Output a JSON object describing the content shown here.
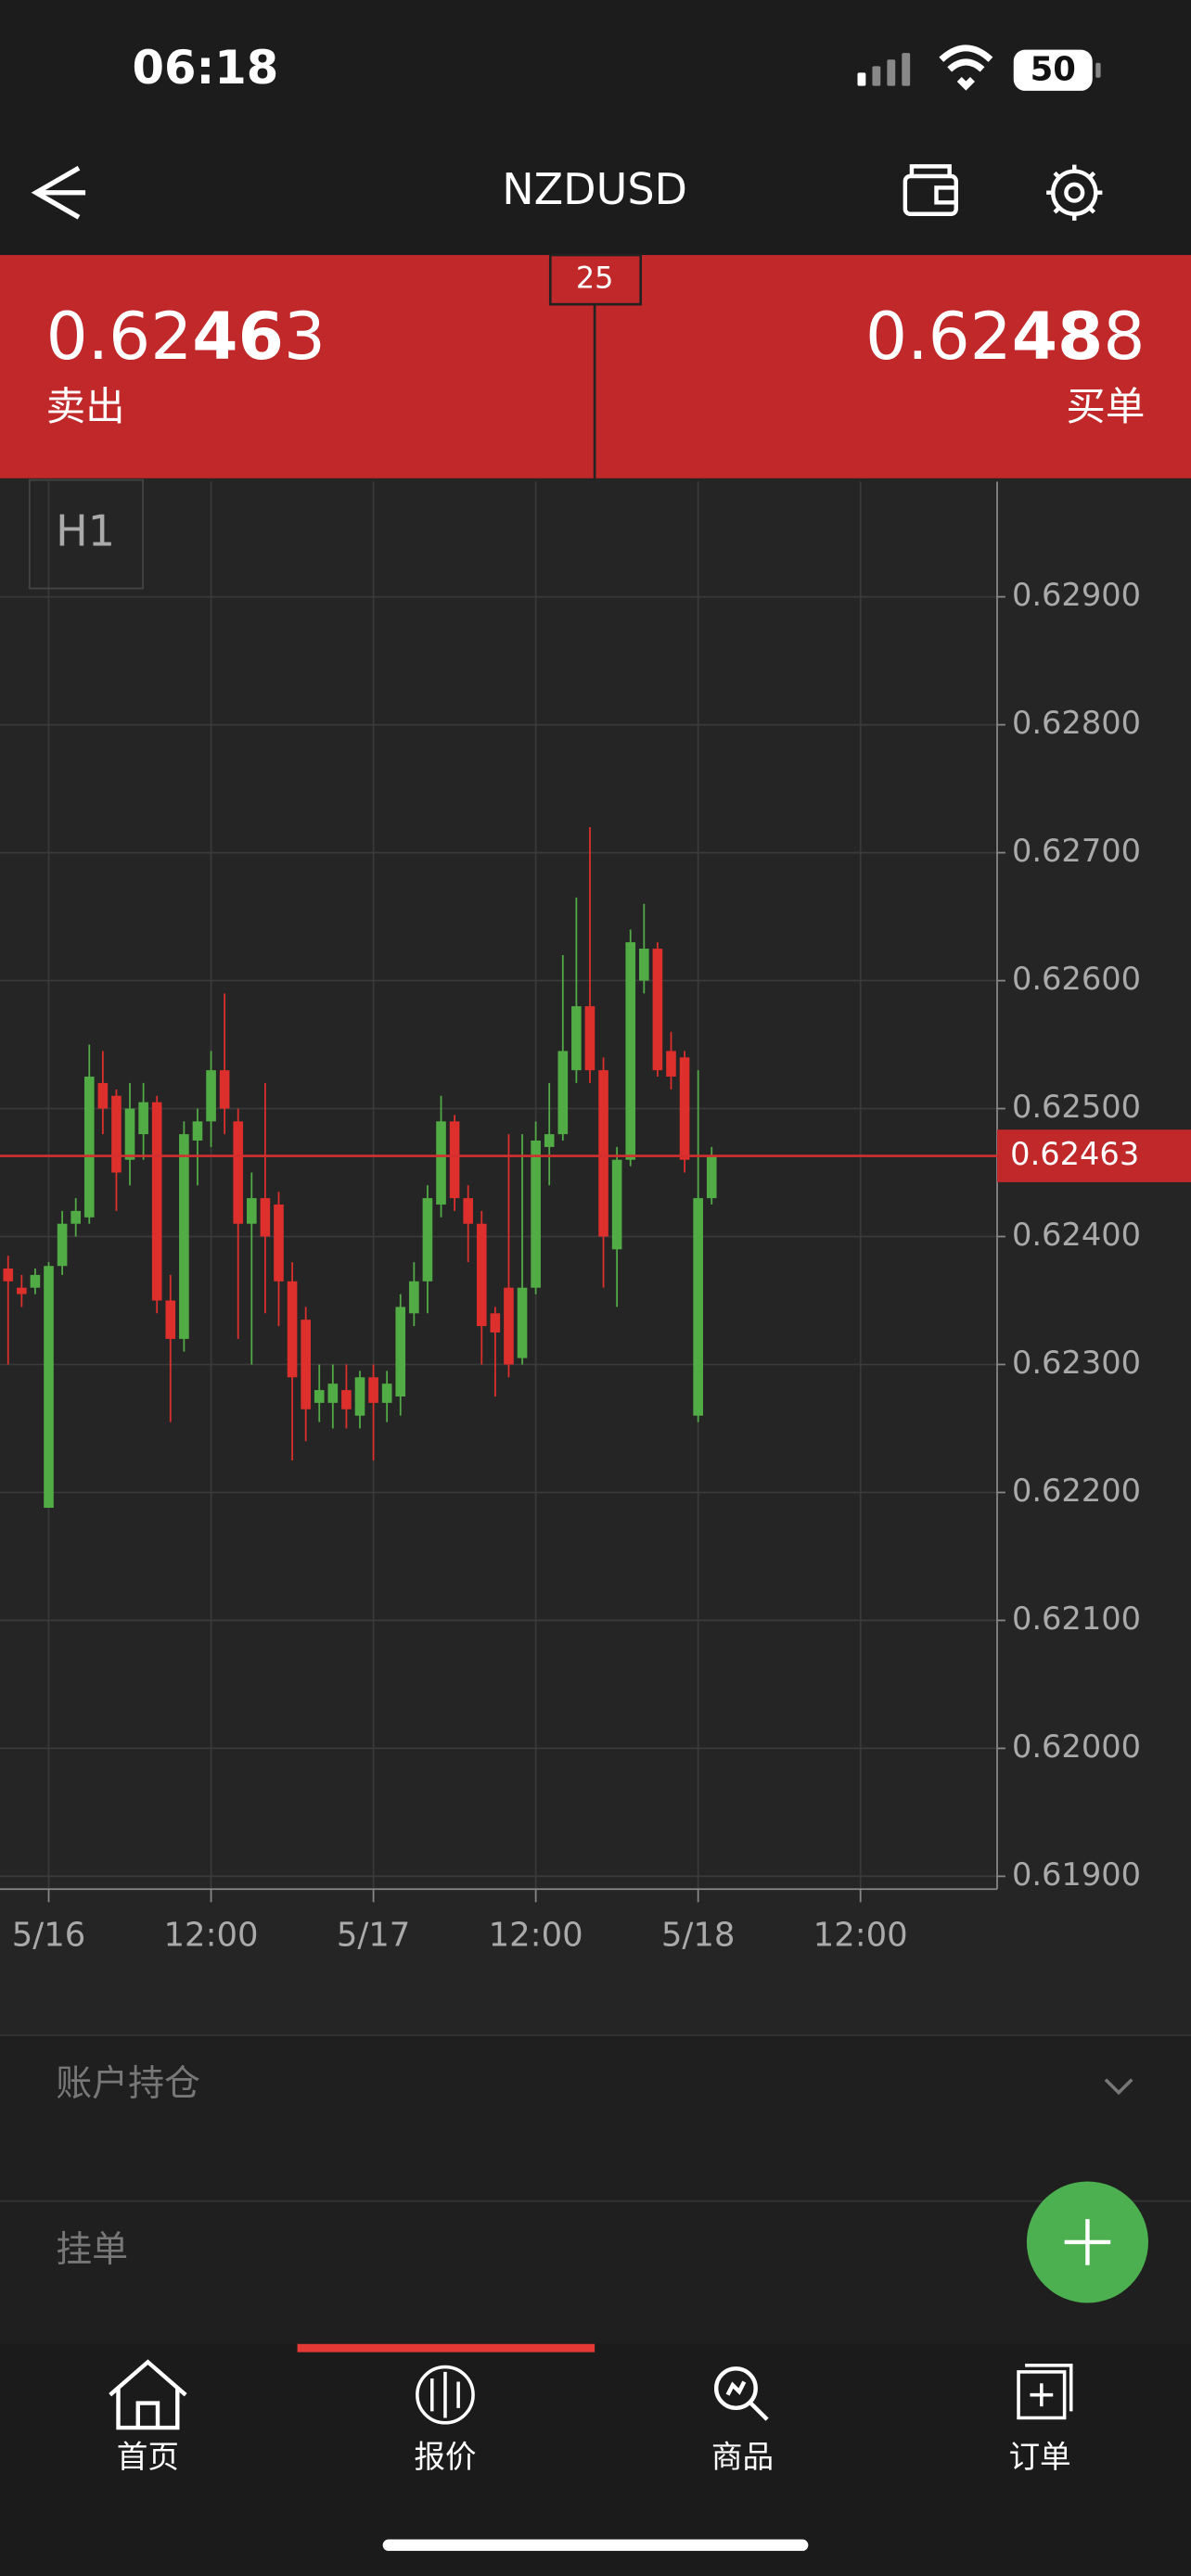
{
  "status_bar": {
    "time": "06:18",
    "battery": "50"
  },
  "header": {
    "title": "NZDUSD"
  },
  "quote": {
    "spread": "25",
    "sell": {
      "price_start": "0.62",
      "price_big": "46",
      "price_end": "3",
      "label": "卖出"
    },
    "buy": {
      "price_start": "0.62",
      "price_big": "48",
      "price_end": "8",
      "label": "买单"
    }
  },
  "chart_data": {
    "type": "candlestick",
    "timeframe": "H1",
    "up_color": "#52ac46",
    "down_color": "#dd2f2c",
    "x": [
      -3,
      -2,
      -1,
      0,
      1,
      2,
      3,
      4,
      5,
      6,
      7,
      8,
      9,
      10,
      11,
      12,
      13,
      14,
      15,
      16,
      17,
      18,
      19,
      20,
      21,
      22,
      23,
      24,
      25,
      26,
      27,
      28,
      29,
      30,
      31,
      32,
      33,
      34,
      35,
      36,
      37,
      38,
      39,
      40,
      41,
      42,
      43,
      44,
      45,
      46,
      47,
      48,
      49
    ],
    "open": [
      0.62375,
      0.6236,
      0.6236,
      0.62188,
      0.62377,
      0.6241,
      0.62415,
      0.6252,
      0.6251,
      0.6246,
      0.6248,
      0.62505,
      0.6235,
      0.6232,
      0.62475,
      0.6249,
      0.6253,
      0.6249,
      0.6241,
      0.6243,
      0.62425,
      0.62365,
      0.62335,
      0.6227,
      0.6227,
      0.6228,
      0.6226,
      0.6229,
      0.6227,
      0.62275,
      0.6234,
      0.62365,
      0.62425,
      0.6249,
      0.6243,
      0.6241,
      0.6234,
      0.6236,
      0.62305,
      0.6236,
      0.6247,
      0.6248,
      0.6253,
      0.6258,
      0.6253,
      0.6239,
      0.6246,
      0.626,
      0.62625,
      0.62545,
      0.6254,
      0.6226,
      0.6243
    ],
    "high": [
      0.62385,
      0.6237,
      0.62375,
      0.6238,
      0.6242,
      0.6243,
      0.6255,
      0.62545,
      0.62515,
      0.6252,
      0.6252,
      0.6251,
      0.6237,
      0.6249,
      0.625,
      0.62545,
      0.6259,
      0.625,
      0.6245,
      0.6252,
      0.62435,
      0.6238,
      0.62345,
      0.623,
      0.623,
      0.623,
      0.62295,
      0.623,
      0.62295,
      0.62355,
      0.6238,
      0.6244,
      0.6251,
      0.62495,
      0.6244,
      0.6242,
      0.62345,
      0.6248,
      0.6248,
      0.6249,
      0.6252,
      0.6262,
      0.62665,
      0.6272,
      0.6254,
      0.6247,
      0.6264,
      0.6266,
      0.6263,
      0.6256,
      0.62545,
      0.6253,
      0.6247
    ],
    "low": [
      0.623,
      0.62345,
      0.62355,
      0.62188,
      0.6237,
      0.624,
      0.6241,
      0.6248,
      0.6242,
      0.6244,
      0.6246,
      0.6234,
      0.62255,
      0.6231,
      0.6244,
      0.6247,
      0.6248,
      0.6232,
      0.623,
      0.6234,
      0.6233,
      0.62225,
      0.6224,
      0.62255,
      0.6225,
      0.6225,
      0.6225,
      0.62225,
      0.62255,
      0.6226,
      0.6233,
      0.6234,
      0.62415,
      0.6242,
      0.6238,
      0.623,
      0.62275,
      0.6229,
      0.623,
      0.62355,
      0.6244,
      0.62475,
      0.6252,
      0.6252,
      0.6236,
      0.62345,
      0.62455,
      0.6259,
      0.62525,
      0.62515,
      0.6245,
      0.62255,
      0.62425
    ],
    "close": [
      0.62365,
      0.62355,
      0.6237,
      0.62377,
      0.6241,
      0.6242,
      0.62525,
      0.625,
      0.6245,
      0.625,
      0.62505,
      0.6235,
      0.6232,
      0.6248,
      0.6249,
      0.6253,
      0.625,
      0.6241,
      0.6243,
      0.624,
      0.62365,
      0.6229,
      0.62265,
      0.6228,
      0.62285,
      0.62265,
      0.6229,
      0.6227,
      0.62285,
      0.62345,
      0.62365,
      0.6243,
      0.6249,
      0.6243,
      0.6241,
      0.6233,
      0.62325,
      0.623,
      0.6236,
      0.62475,
      0.6248,
      0.62545,
      0.6258,
      0.6253,
      0.624,
      0.6246,
      0.6263,
      0.62625,
      0.6253,
      0.62525,
      0.6246,
      0.6243,
      0.62463
    ],
    "xlim": [
      -3.6,
      70.1
    ],
    "xticks": [
      {
        "value": 0,
        "label": "5/16"
      },
      {
        "value": 12,
        "label": "12:00"
      },
      {
        "value": 24,
        "label": "5/17"
      },
      {
        "value": 36,
        "label": "12:00"
      },
      {
        "value": 48,
        "label": "5/18"
      },
      {
        "value": 60,
        "label": "12:00"
      }
    ],
    "ylim": [
      0.6189,
      0.6299
    ],
    "yticks": [
      {
        "value": 0.629,
        "label": "0.62900"
      },
      {
        "value": 0.628,
        "label": "0.62800"
      },
      {
        "value": 0.627,
        "label": "0.62700"
      },
      {
        "value": 0.626,
        "label": "0.62600"
      },
      {
        "value": 0.625,
        "label": "0.62500"
      },
      {
        "value": 0.624,
        "label": "0.62400"
      },
      {
        "value": 0.623,
        "label": "0.62300"
      },
      {
        "value": 0.622,
        "label": "0.62200"
      },
      {
        "value": 0.621,
        "label": "0.62100"
      },
      {
        "value": 0.62,
        "label": "0.62000"
      },
      {
        "value": 0.619,
        "label": "0.61900"
      }
    ],
    "grid": true,
    "current_price": {
      "value": 0.62463,
      "label": "0.62463"
    }
  },
  "sections": {
    "positions": "账户持仓",
    "pending": "挂单"
  },
  "nav": {
    "items": [
      "首页",
      "报价",
      "商品",
      "订单"
    ]
  }
}
